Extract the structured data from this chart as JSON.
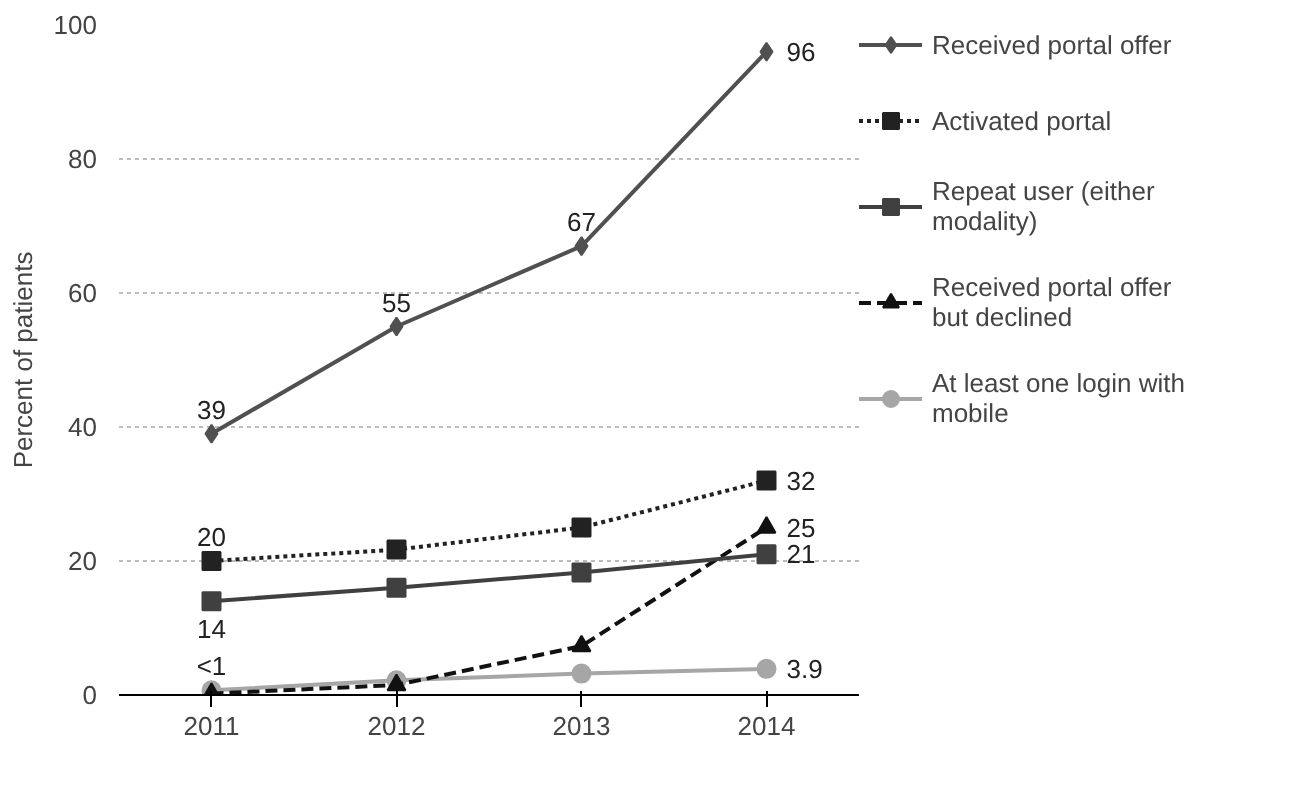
{
  "chart_data": {
    "type": "line",
    "ylabel": "Percent of patients",
    "categories": [
      "2011",
      "2012",
      "2013",
      "2014"
    ],
    "ylim": [
      0,
      100
    ],
    "yticks": [
      0,
      20,
      40,
      60,
      80,
      100
    ],
    "grid": "y",
    "legend": "right",
    "series": [
      {
        "name": "Received portal offer",
        "color": "#505050",
        "marker": "diamond",
        "line_style": "solid",
        "values": [
          39,
          55,
          67,
          96
        ],
        "value_labels": [
          "39",
          "55",
          "67",
          "96"
        ]
      },
      {
        "name": "Activated portal",
        "color": "#222222",
        "marker": "square",
        "line_style": "dotted",
        "values": [
          20,
          21.7,
          25,
          32
        ],
        "value_labels": [
          "20",
          null,
          null,
          "32"
        ]
      },
      {
        "name": "Repeat user (either modality)",
        "color": "#404040",
        "marker": "square",
        "line_style": "solid",
        "values": [
          14,
          16,
          18.3,
          21
        ],
        "value_labels": [
          "14",
          null,
          null,
          "21"
        ]
      },
      {
        "name": "Received portal offer but declined",
        "color": "#111111",
        "marker": "triangle",
        "line_style": "dashed",
        "values": [
          0.2,
          1.5,
          7.3,
          25
        ],
        "value_labels": [
          null,
          null,
          null,
          "25"
        ]
      },
      {
        "name": "At least one login with mobile",
        "color": "#a6a6a6",
        "marker": "circle",
        "line_style": "solid",
        "values": [
          0.7,
          2.2,
          3.2,
          3.9
        ],
        "value_labels": [
          "<1",
          null,
          null,
          "3.9"
        ]
      }
    ]
  }
}
